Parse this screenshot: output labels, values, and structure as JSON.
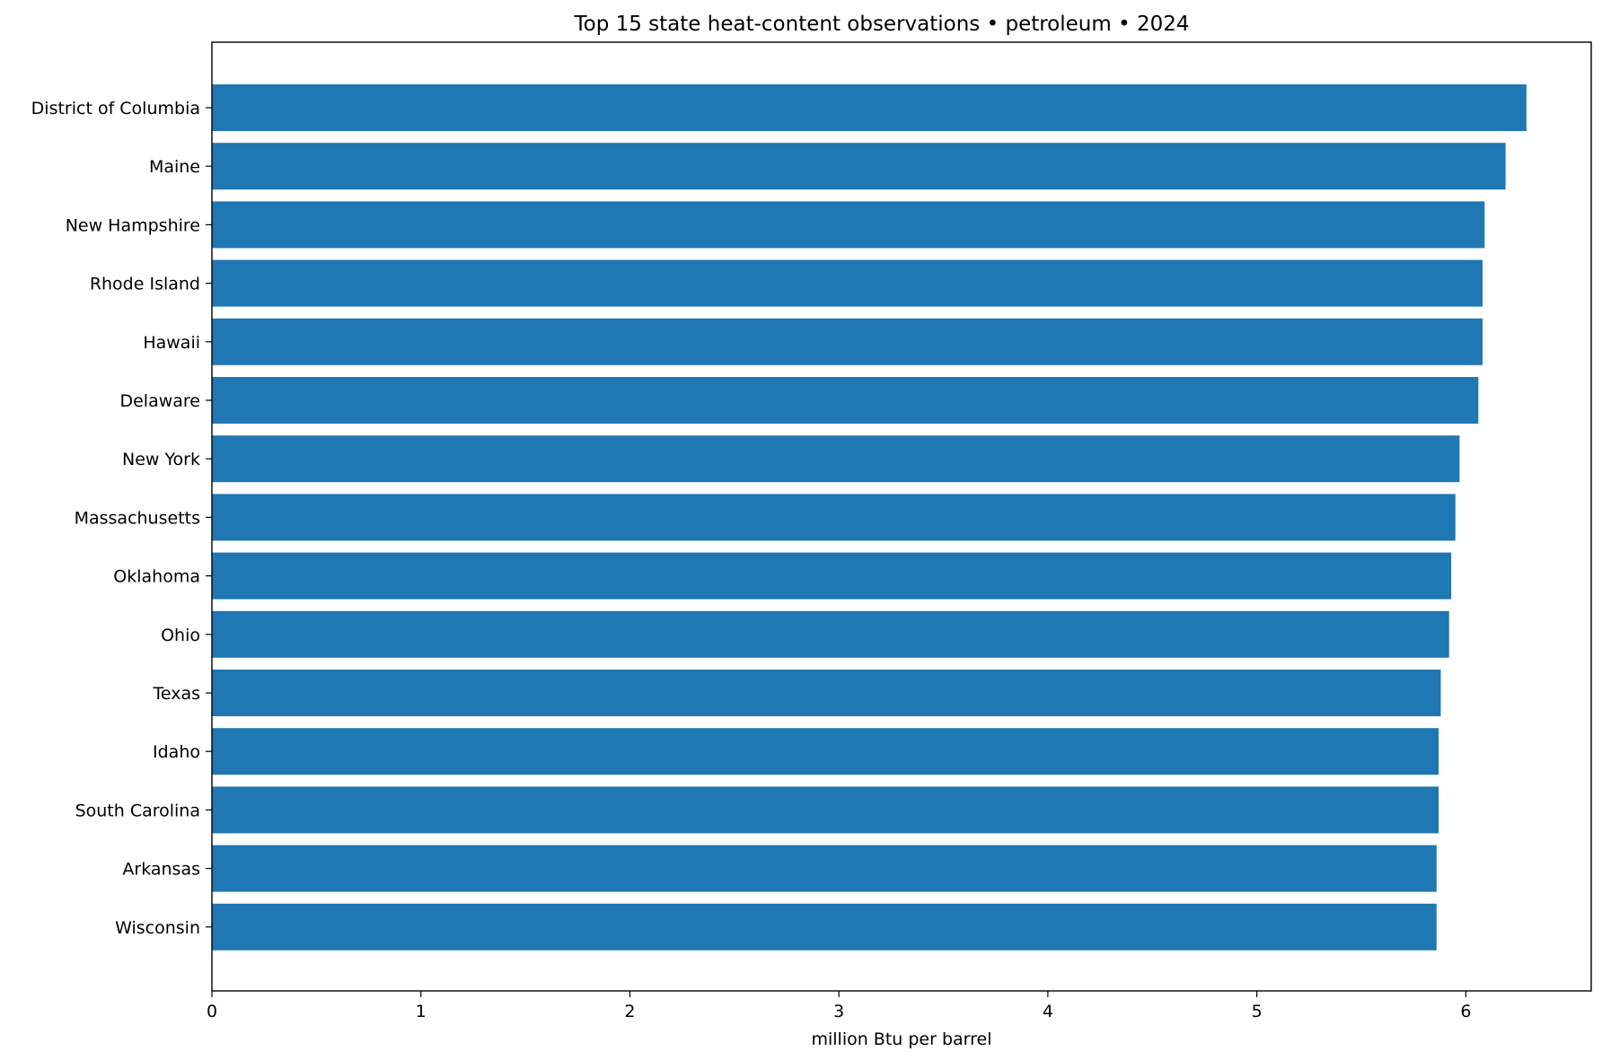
{
  "chart_data": {
    "type": "bar",
    "orientation": "horizontal",
    "title": "Top 15 state heat-content observations • petroleum • 2024",
    "xlabel": "million Btu per barrel",
    "ylabel": "",
    "xlim": [
      0,
      6.6
    ],
    "xticks": [
      0,
      1,
      2,
      3,
      4,
      5,
      6
    ],
    "grid": false,
    "legend": "none",
    "bar_color": "#1f77b4",
    "categories": [
      "District of Columbia",
      "Maine",
      "New Hampshire",
      "Rhode Island",
      "Hawaii",
      "Delaware",
      "New York",
      "Massachusetts",
      "Oklahoma",
      "Ohio",
      "Texas",
      "Idaho",
      "South Carolina",
      "Arkansas",
      "Wisconsin"
    ],
    "values": [
      6.29,
      6.19,
      6.09,
      6.08,
      6.08,
      6.06,
      5.97,
      5.95,
      5.93,
      5.92,
      5.88,
      5.87,
      5.87,
      5.86,
      5.86
    ]
  }
}
